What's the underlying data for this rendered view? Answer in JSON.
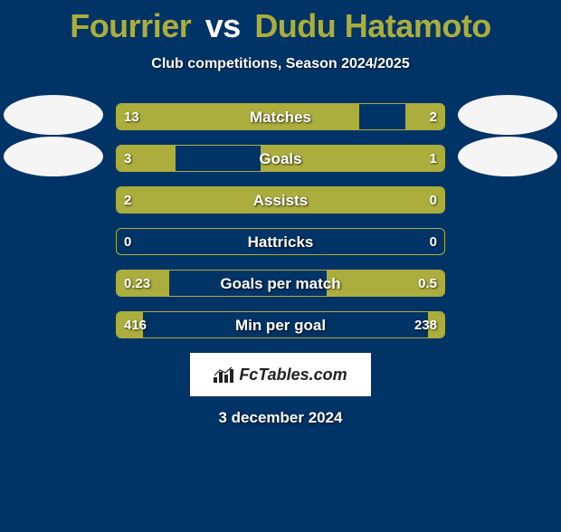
{
  "title": {
    "player1": "Fourrier",
    "vs": "vs",
    "player2": "Dudu Hatamoto"
  },
  "subtitle": "Club competitions, Season 2024/2025",
  "colors": {
    "background": "#003366",
    "accent": "#abad3d",
    "bar_border": "#abad3d",
    "text": "#ffffff",
    "brand_bg": "#ffffff",
    "brand_text": "#222222"
  },
  "chart": {
    "type": "comparison-bars",
    "track_width": 364,
    "rows": [
      {
        "metric": "Matches",
        "left_val": "13",
        "right_val": "2",
        "left_pct": 74,
        "right_pct": 12,
        "show_left_avatar": true,
        "show_right_avatar": true
      },
      {
        "metric": "Goals",
        "left_val": "3",
        "right_val": "1",
        "left_pct": 18,
        "right_pct": 56,
        "show_left_avatar": true,
        "show_right_avatar": true
      },
      {
        "metric": "Assists",
        "left_val": "2",
        "right_val": "0",
        "left_pct": 100,
        "right_pct": 0,
        "show_left_avatar": false,
        "show_right_avatar": false
      },
      {
        "metric": "Hattricks",
        "left_val": "0",
        "right_val": "0",
        "left_pct": 0,
        "right_pct": 0,
        "show_left_avatar": false,
        "show_right_avatar": false
      },
      {
        "metric": "Goals per match",
        "left_val": "0.23",
        "right_val": "0.5",
        "left_pct": 16,
        "right_pct": 36,
        "show_left_avatar": false,
        "show_right_avatar": false
      },
      {
        "metric": "Min per goal",
        "left_val": "416",
        "right_val": "238",
        "left_pct": 8,
        "right_pct": 5,
        "show_left_avatar": false,
        "show_right_avatar": false
      }
    ]
  },
  "brand": "FcTables.com",
  "date": "3 december 2024"
}
